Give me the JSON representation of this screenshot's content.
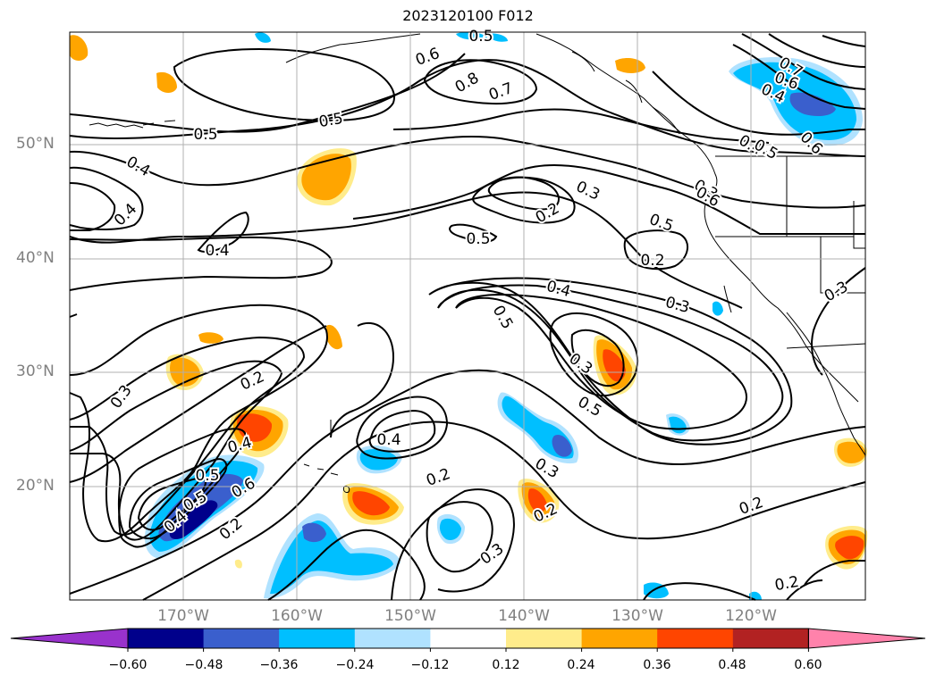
{
  "title": "2023120100 F012",
  "map": {
    "projection": "cylindrical",
    "lon_range": [
      -180,
      -110
    ],
    "lat_range": [
      10,
      60
    ],
    "lat_labels": [
      "50°N",
      "40°N",
      "30°N",
      "20°N"
    ],
    "lon_labels": [
      "170°W",
      "160°W",
      "150°W",
      "140°W",
      "130°W",
      "120°W"
    ],
    "coastlines": true,
    "gridlines": true
  },
  "contours": {
    "color": "#000000",
    "labels": [
      "0.5",
      "0.4",
      "0.6",
      "0.8",
      "0.7",
      "0.5",
      "0.4",
      "0.4",
      "0.5",
      "0.2",
      "0.3",
      "0.5",
      "0.2",
      "0.4",
      "0.3",
      "0.5",
      "0.3",
      "0.5",
      "0.2",
      "0.4",
      "0.5",
      "0.6",
      "0.5",
      "0.4",
      "0.3",
      "0.7",
      "0.6",
      "0.4",
      "0.2",
      "0.4",
      "0.2",
      "0.3",
      "0.2",
      "0.3",
      "0.2",
      "0.2",
      "0.3",
      "0.4",
      "0.5",
      "0.6",
      "0.5",
      "0.3",
      "0.6"
    ]
  },
  "colorbar": {
    "ticks": [
      "−0.60",
      "−0.48",
      "−0.36",
      "−0.24",
      "−0.12",
      "0.12",
      "0.24",
      "0.36",
      "0.48",
      "0.60"
    ],
    "colors": [
      "#9932cc",
      "#00008b",
      "#3a5fcd",
      "#00bfff",
      "#b0e2ff",
      "#ffffff",
      "#ffec8b",
      "#ffa500",
      "#ff4500",
      "#b22222",
      "#ff82ab"
    ]
  },
  "fill_colors": {
    "neg1": "#b0e2ff",
    "neg2": "#00bfff",
    "neg3": "#3a5fcd",
    "pos1": "#ffec8b",
    "pos2": "#ffa500",
    "pos3": "#ff4500"
  }
}
